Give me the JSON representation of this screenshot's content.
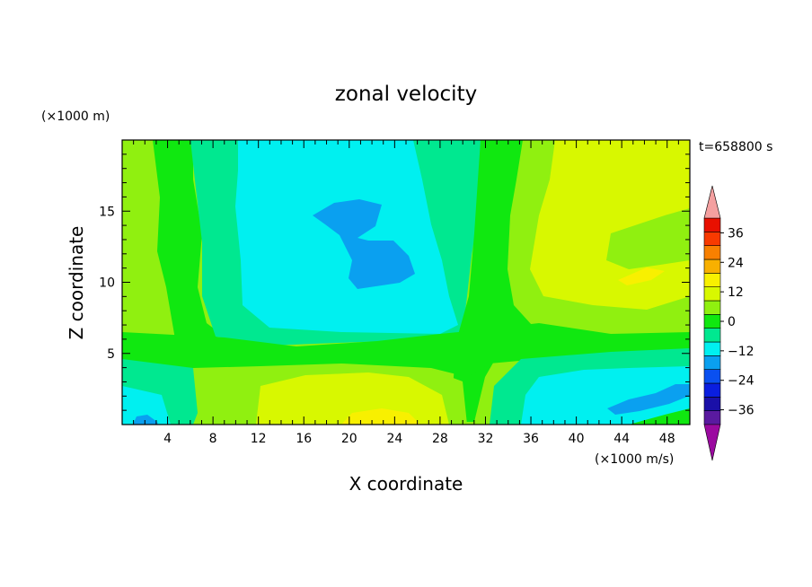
{
  "chart_data": {
    "type": "heatmap",
    "title": "zonal velocity",
    "xlabel": "X coordinate",
    "ylabel": "Z coordinate",
    "x_unit_label": "(×1000 m/s)",
    "y_unit_label": "(×1000 m)",
    "time_label": "t=658800 s",
    "xlim": [
      0,
      50
    ],
    "ylim": [
      0,
      20
    ],
    "x_ticks": [
      4,
      8,
      12,
      16,
      20,
      24,
      28,
      32,
      36,
      40,
      44,
      48
    ],
    "y_ticks": [
      5,
      10,
      15
    ],
    "colorbar": {
      "levels": [
        -42,
        -36,
        -30,
        -24,
        -18,
        -12,
        -6,
        0,
        6,
        12,
        18,
        24,
        30,
        36,
        42
      ],
      "tick_labels": [
        "36",
        "24",
        "12",
        "0",
        "−12",
        "−24",
        "−36"
      ],
      "tick_values": [
        36,
        24,
        12,
        0,
        -12,
        -24,
        -36
      ],
      "colors": [
        "#5a1aa0",
        "#1a10a8",
        "#0a1ee0",
        "#0a50f0",
        "#0aa0f0",
        "#00f0f0",
        "#00e890",
        "#10e810",
        "#90f010",
        "#d8f800",
        "#f8f000",
        "#f8b000",
        "#f88000",
        "#f83a00",
        "#e81000"
      ],
      "under_color": "#9b0aa0",
      "over_color": "#f4a0a0"
    }
  }
}
